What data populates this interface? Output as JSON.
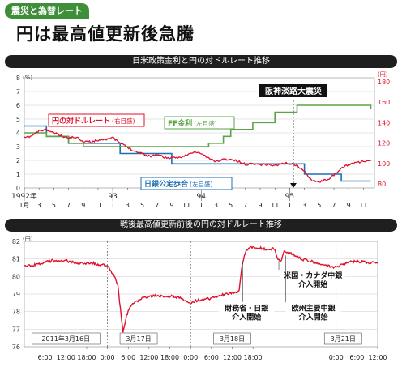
{
  "header": {
    "tag": "震災と為替レート",
    "headline": "円は最高値更新後急騰"
  },
  "colors": {
    "tag_green": "#3f8f3a",
    "yen_red": "#e0102a",
    "ff_green": "#5aa346",
    "boj_blue": "#1f6fb5",
    "bar_black": "#1f1f1f"
  },
  "chart_data": [
    {
      "type": "line",
      "title": "日米政策金利と円の対ドルレート推移",
      "event_label": "阪神淡路大震災",
      "left_axis": {
        "unit": "(%)",
        "ticks": [
          "0",
          "1",
          "2",
          "3",
          "4",
          "5",
          "6",
          "7",
          "8"
        ],
        "ylim": [
          0,
          8
        ]
      },
      "right_axis": {
        "unit": "(円)",
        "ticks": [
          "80",
          "100",
          "120",
          "140",
          "160",
          "180"
        ],
        "ylim": [
          76,
          184
        ]
      },
      "x_ticks": [
        "1月",
        "3",
        "5",
        "7",
        "9",
        "11",
        "1",
        "3",
        "5",
        "7",
        "9",
        "11",
        "1",
        "3",
        "5",
        "7",
        "9",
        "11",
        "1",
        "3",
        "5",
        "7",
        "9",
        "11"
      ],
      "year_labels": [
        {
          "month": 0,
          "text": "1992年"
        },
        {
          "month": 12,
          "text": "93"
        },
        {
          "month": 24,
          "text": "94"
        },
        {
          "month": 36,
          "text": "95"
        }
      ],
      "event_month": 36.5,
      "series": [
        {
          "name": "円の対ドルレート",
          "axis_note": "(右目盛)",
          "axis": "right",
          "points": [
            [
              0,
              125
            ],
            [
              1,
              127
            ],
            [
              2,
              132
            ],
            [
              3,
              133
            ],
            [
              4,
              130
            ],
            [
              5,
              127
            ],
            [
              6,
              125
            ],
            [
              7,
              126
            ],
            [
              8,
              122
            ],
            [
              9,
              121
            ],
            [
              10,
              123
            ],
            [
              11,
              124
            ],
            [
              12,
              125
            ],
            [
              13,
              120
            ],
            [
              14,
              116
            ],
            [
              15,
              112
            ],
            [
              16,
              110
            ],
            [
              17,
              107
            ],
            [
              18,
              109
            ],
            [
              19,
              106
            ],
            [
              20,
              105
            ],
            [
              21,
              106
            ],
            [
              22,
              108
            ],
            [
              23,
              111
            ],
            [
              24,
              110
            ],
            [
              25,
              105
            ],
            [
              26,
              102
            ],
            [
              27,
              104
            ],
            [
              28,
              104
            ],
            [
              29,
              102
            ],
            [
              30,
              99
            ],
            [
              31,
              100
            ],
            [
              32,
              99
            ],
            [
              33,
              99
            ],
            [
              34,
              98
            ],
            [
              35,
              100
            ],
            [
              36,
              100
            ],
            [
              37,
              98
            ],
            [
              38,
              92
            ],
            [
              39,
              84
            ],
            [
              40,
              82
            ],
            [
              41,
              84
            ],
            [
              42,
              88
            ],
            [
              43,
              95
            ],
            [
              44,
              99
            ],
            [
              45,
              101
            ],
            [
              46,
              102
            ],
            [
              47,
              102
            ]
          ]
        },
        {
          "name": "FF金利",
          "axis_note": "(左目盛)",
          "axis": "left",
          "points": [
            [
              0,
              4
            ],
            [
              3,
              4
            ],
            [
              3,
              3.75
            ],
            [
              6,
              3.75
            ],
            [
              6,
              3.25
            ],
            [
              8,
              3.25
            ],
            [
              8,
              3
            ],
            [
              25,
              3
            ],
            [
              25,
              3.25
            ],
            [
              27,
              3.25
            ],
            [
              27,
              3.75
            ],
            [
              28,
              3.75
            ],
            [
              28,
              4.25
            ],
            [
              31,
              4.25
            ],
            [
              31,
              4.75
            ],
            [
              34,
              4.75
            ],
            [
              34,
              5.5
            ],
            [
              37,
              5.5
            ],
            [
              37,
              6
            ],
            [
              47,
              6
            ],
            [
              47,
              5.75
            ]
          ]
        },
        {
          "name": "日銀公定歩合",
          "axis_note": "(左目盛)",
          "axis": "left",
          "points": [
            [
              0,
              4.5
            ],
            [
              3,
              4.5
            ],
            [
              3,
              3.75
            ],
            [
              6,
              3.75
            ],
            [
              6,
              3.25
            ],
            [
              13,
              3.25
            ],
            [
              13,
              2.5
            ],
            [
              20,
              2.5
            ],
            [
              20,
              1.75
            ],
            [
              38,
              1.75
            ],
            [
              38,
              1
            ],
            [
              43,
              1
            ],
            [
              43,
              0.5
            ],
            [
              47,
              0.5
            ]
          ]
        }
      ]
    },
    {
      "type": "line",
      "title": "戦後最高値更新前後の円の対ドルレート推移",
      "y_axis": {
        "unit": "(円)",
        "ticks": [
          "76",
          "77",
          "78",
          "79",
          "80",
          "81",
          "82"
        ],
        "ylim": [
          76,
          82
        ]
      },
      "x_ticks": [
        "6:00",
        "12:00",
        "18:00",
        "0:00",
        "6:00",
        "12:00",
        "18:00",
        "0:00",
        "6:00",
        "12:00",
        "18:00",
        "0:00",
        "6:00",
        "12:00"
      ],
      "day_labels": [
        "2011年3月16日",
        "3月17日",
        "3月18日",
        "3月21日"
      ],
      "series": [
        {
          "name": "円の対ドルレート",
          "points": [
            [
              0,
              80.55
            ],
            [
              4,
              80.7
            ],
            [
              8,
              80.9
            ],
            [
              12,
              80.9
            ],
            [
              16,
              80.75
            ],
            [
              20,
              80.75
            ],
            [
              24,
              80.6
            ],
            [
              26,
              80.0
            ],
            [
              27,
              79.5
            ],
            [
              28.5,
              76.8
            ],
            [
              29.5,
              77.8
            ],
            [
              31,
              78.4
            ],
            [
              34,
              78.8
            ],
            [
              37,
              78.9
            ],
            [
              40,
              78.9
            ],
            [
              43,
              78.85
            ],
            [
              46,
              78.7
            ],
            [
              48,
              78.5
            ],
            [
              50,
              78.65
            ],
            [
              52,
              78.7
            ],
            [
              55,
              78.8
            ],
            [
              58,
              79.0
            ],
            [
              61,
              79.1
            ],
            [
              62,
              79.2
            ],
            [
              63,
              80.8
            ],
            [
              64,
              81.5
            ],
            [
              66,
              81.7
            ],
            [
              68,
              81.65
            ],
            [
              70,
              81.5
            ],
            [
              72,
              81.6
            ],
            [
              73,
              81.1
            ],
            [
              74,
              80.8
            ],
            [
              75,
              81.4
            ],
            [
              77,
              81.3
            ],
            [
              80,
              81.0
            ],
            [
              84,
              80.8
            ],
            [
              88,
              80.6
            ],
            [
              90,
              80.5
            ],
            [
              93,
              80.8
            ],
            [
              96,
              80.85
            ],
            [
              99,
              80.8
            ],
            [
              102,
              80.8
            ]
          ]
        }
      ],
      "annotations": [
        {
          "text": "財務省・日銀\n介入開始",
          "x": 63
        },
        {
          "text": "米国・カナダ中銀\n介入開始",
          "x": 74
        },
        {
          "text": "欧州主要中銀\n介入開始",
          "x": 75
        }
      ]
    }
  ]
}
